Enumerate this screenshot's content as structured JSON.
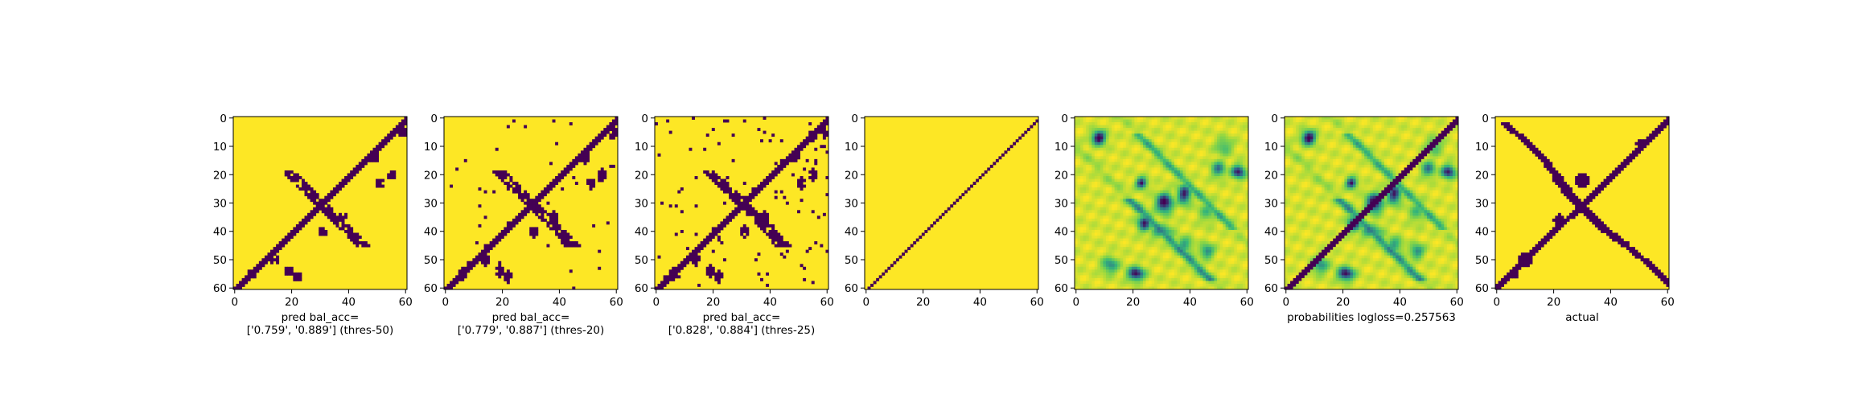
{
  "figure": {
    "colors": {
      "low": "#440154",
      "high": "#fde725",
      "mid1": "#31688e",
      "mid2": "#35b779",
      "mid3": "#90d743"
    }
  },
  "chart_data": [
    {
      "type": "heatmap",
      "id": "p1",
      "kind": "binary",
      "mode": "pred",
      "threshold": 50,
      "xlabel_lines": [
        "pred bal_acc=",
        "['0.759', '0.889'] (thres-50)"
      ],
      "xlim": [
        0,
        60
      ],
      "ylim": [
        0,
        60
      ],
      "xticks": [
        0,
        20,
        40,
        60
      ],
      "yticks": [
        0,
        10,
        20,
        30,
        40,
        50,
        60
      ]
    },
    {
      "type": "heatmap",
      "id": "p2",
      "kind": "binary",
      "mode": "pred",
      "threshold": 20,
      "xlabel_lines": [
        "pred bal_acc=",
        "['0.779', '0.887'] (thres-20)"
      ],
      "xlim": [
        0,
        60
      ],
      "ylim": [
        0,
        60
      ],
      "xticks": [
        0,
        20,
        40,
        60
      ],
      "yticks": [
        0,
        10,
        20,
        30,
        40,
        50,
        60
      ]
    },
    {
      "type": "heatmap",
      "id": "p3",
      "kind": "binary",
      "mode": "pred",
      "threshold": 25,
      "xlabel_lines": [
        "pred bal_acc=",
        "['0.828', '0.884'] (thres-25)"
      ],
      "xlim": [
        0,
        60
      ],
      "ylim": [
        0,
        60
      ],
      "xticks": [
        0,
        20,
        40,
        60
      ],
      "yticks": [
        0,
        10,
        20,
        30,
        40,
        50,
        60
      ]
    },
    {
      "type": "heatmap",
      "id": "p4",
      "kind": "binary",
      "mode": "antidiag",
      "xlabel_lines": [],
      "xlim": [
        0,
        60
      ],
      "ylim": [
        0,
        60
      ],
      "xticks": [
        0,
        20,
        40,
        60
      ],
      "yticks": [
        0,
        10,
        20,
        30,
        40,
        50,
        60
      ]
    },
    {
      "type": "heatmap",
      "id": "p5",
      "kind": "continuous",
      "mode": "prob_plain",
      "xlabel_lines": [],
      "xlim": [
        0,
        60
      ],
      "ylim": [
        0,
        60
      ],
      "xticks": [
        0,
        20,
        40,
        60
      ],
      "yticks": [
        0,
        10,
        20,
        30,
        40,
        50,
        60
      ]
    },
    {
      "type": "heatmap",
      "id": "p6",
      "kind": "continuous",
      "mode": "prob_diag",
      "xlabel_lines": [
        "probabilities logloss=0.257563"
      ],
      "xlim": [
        0,
        60
      ],
      "ylim": [
        0,
        60
      ],
      "xticks": [
        0,
        20,
        40,
        60
      ],
      "yticks": [
        0,
        10,
        20,
        30,
        40,
        50,
        60
      ]
    },
    {
      "type": "heatmap",
      "id": "p7",
      "kind": "binary",
      "mode": "actual",
      "xlabel_lines": [
        "actual"
      ],
      "xlim": [
        0,
        60
      ],
      "ylim": [
        0,
        60
      ],
      "xticks": [
        0,
        20,
        40,
        60
      ],
      "yticks": [
        0,
        10,
        20,
        30,
        40,
        50,
        60
      ]
    }
  ]
}
